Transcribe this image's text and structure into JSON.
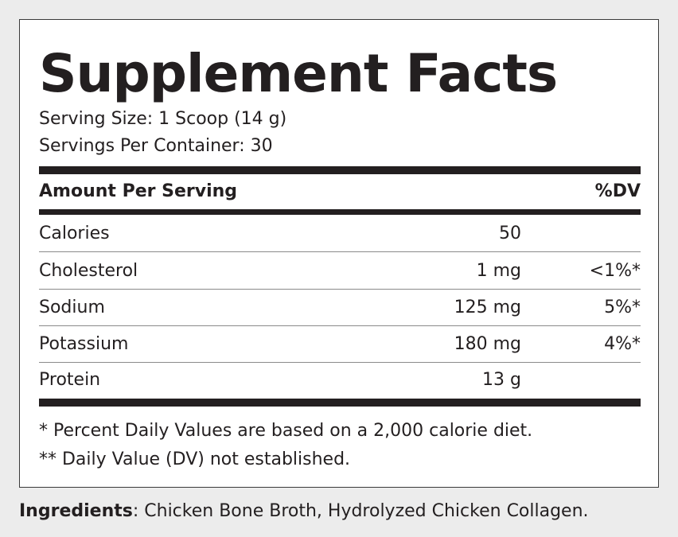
{
  "label": {
    "title": "Supplement Facts",
    "serving_size": "Serving Size: 1 Scoop (14 g)",
    "servings_per_container": "Servings Per Container: 30",
    "header": {
      "amount_per_serving": "Amount Per Serving",
      "dv": "%DV"
    },
    "rows": [
      {
        "name": "Calories",
        "amount": "50",
        "dv": ""
      },
      {
        "name": "Cholesterol",
        "amount": "1 mg",
        "dv": "<1%*"
      },
      {
        "name": "Sodium",
        "amount": "125 mg",
        "dv": "5%*"
      },
      {
        "name": "Potassium",
        "amount": "180 mg",
        "dv": "4%*"
      },
      {
        "name": "Protein",
        "amount": "13 g",
        "dv": ""
      }
    ],
    "footnotes": [
      "* Percent Daily Values are based on a 2,000 calorie diet.",
      "** Daily Value (DV) not established."
    ]
  },
  "ingredients": {
    "label": "Ingredients",
    "separator": ": ",
    "text": "Chicken Bone Broth, Hydrolyzed Chicken Collagen."
  }
}
